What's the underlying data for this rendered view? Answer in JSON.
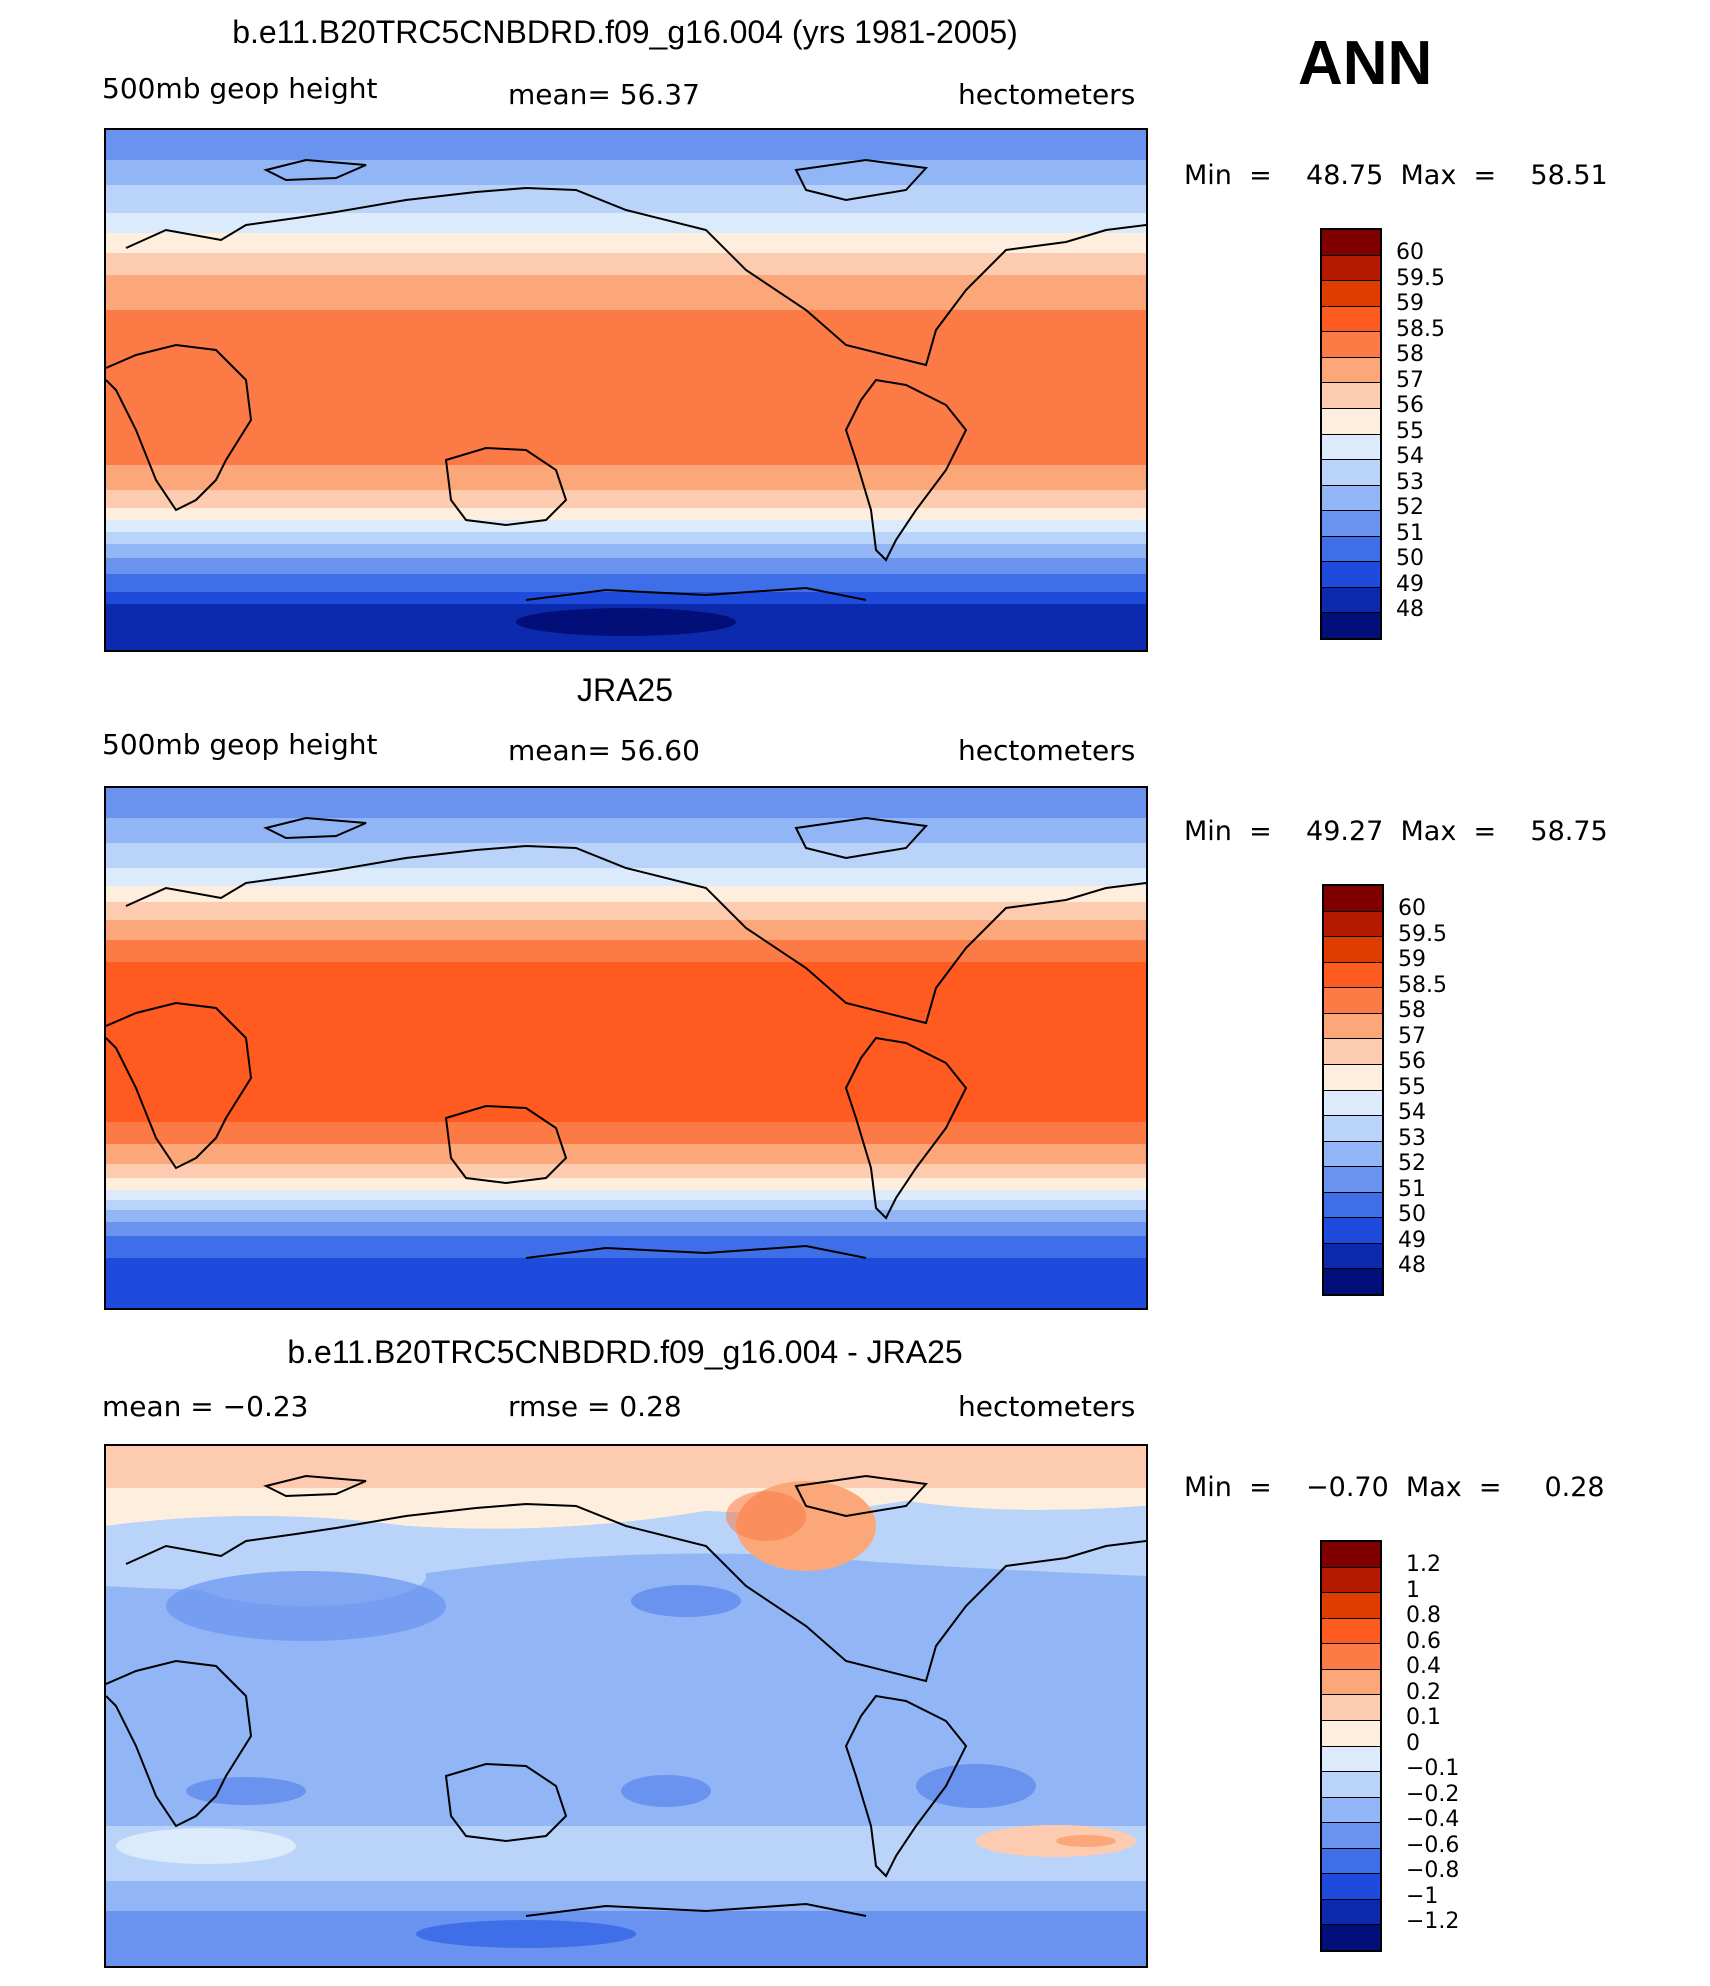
{
  "season": "ANN",
  "panels": [
    {
      "title": "b.e11.B20TRC5CNBDRD.f09_g16.004 (yrs 1981-2005)",
      "left_label": "500mb  geop  height",
      "center_label": "mean=   56.37",
      "right_label": "hectometers",
      "min_max": "Min  =    48.75  Max  =    58.51",
      "colorbar_labels": [
        "60",
        "59.5",
        "59",
        "58.5",
        "58",
        "57",
        "56",
        "55",
        "54",
        "53",
        "52",
        "51",
        "50",
        "49",
        "48"
      ],
      "colors": [
        "#800000",
        "#b31a00",
        "#e03c00",
        "#ff5a1f",
        "#fc7a45",
        "#fba77a",
        "#fdcbb0",
        "#feeedd",
        "#dcebfb",
        "#b9d4f8",
        "#92b6f5",
        "#6a93f0",
        "#3f6ee9",
        "#1e4bdc",
        "#0b2aad",
        "#030f78"
      ]
    },
    {
      "title": "JRA25",
      "left_label": "500mb  geop  height",
      "center_label": "mean=   56.60",
      "right_label": "hectometers",
      "min_max": "Min  =    49.27  Max  =    58.75",
      "colorbar_labels": [
        "60",
        "59.5",
        "59",
        "58.5",
        "58",
        "57",
        "56",
        "55",
        "54",
        "53",
        "52",
        "51",
        "50",
        "49",
        "48"
      ],
      "colors": [
        "#800000",
        "#b31a00",
        "#e03c00",
        "#ff5a1f",
        "#fc7a45",
        "#fba77a",
        "#fdcbb0",
        "#feeedd",
        "#dcebfb",
        "#b9d4f8",
        "#92b6f5",
        "#6a93f0",
        "#3f6ee9",
        "#1e4bdc",
        "#0b2aad",
        "#030f78"
      ]
    },
    {
      "title": "b.e11.B20TRC5CNBDRD.f09_g16.004 - JRA25",
      "left_label": "mean  =    −0.23",
      "center_label": "rmse  =     0.28",
      "right_label": "hectometers",
      "min_max": "Min  =    −0.70  Max  =     0.28",
      "colorbar_labels": [
        "1.2",
        "1",
        "0.8",
        "0.6",
        "0.4",
        "0.2",
        "0.1",
        "0",
        "−0.1",
        "−0.2",
        "−0.4",
        "−0.6",
        "−0.8",
        "−1",
        "−1.2"
      ],
      "colors": [
        "#800000",
        "#b31a00",
        "#e03c00",
        "#ff5a1f",
        "#fc7a45",
        "#fba77a",
        "#fdcbb0",
        "#feeedd",
        "#dcebfb",
        "#b9d4f8",
        "#92b6f5",
        "#6a93f0",
        "#3f6ee9",
        "#1e4bdc",
        "#0b2aad",
        "#030f78"
      ]
    }
  ]
}
